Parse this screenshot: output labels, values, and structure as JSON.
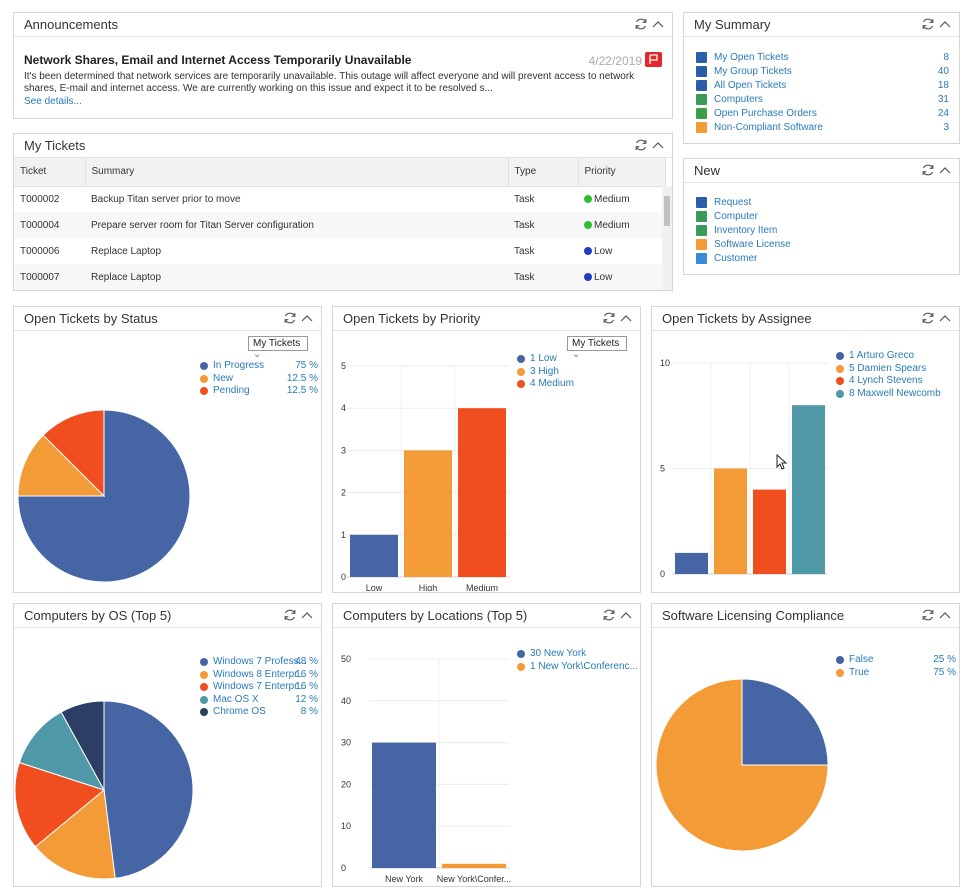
{
  "colors": {
    "blue": "#4565a4",
    "orange": "#f29b37",
    "red": "#f04e1e",
    "teal": "#4e98a8",
    "navy": "#2c3e63",
    "link": "#2a7ab8"
  },
  "announcements": {
    "title": "Announcements",
    "headline": "Network Shares, Email and Internet Access Temporarily Unavailable",
    "date": "4/22/2019",
    "body": "It's been determined that network services are temporarily unavailable. This outage will affect everyone and will prevent access to network shares, E-mail and internet access. We are currently working on this issue and expect it to be resolved s...",
    "see_details": "See details..."
  },
  "my_tickets": {
    "title": "My Tickets",
    "columns": [
      "Ticket",
      "Summary",
      "Type",
      "Priority"
    ],
    "rows": [
      {
        "ticket": "T000002",
        "summary": "Backup Titan server prior to move",
        "type": "Task",
        "priority": "Medium",
        "color": "#2fbf2f"
      },
      {
        "ticket": "T000004",
        "summary": "Prepare server room for Titan Server configuration",
        "type": "Task",
        "priority": "Medium",
        "color": "#2fbf2f"
      },
      {
        "ticket": "T000006",
        "summary": "Replace Laptop",
        "type": "Task",
        "priority": "Low",
        "color": "#1f3fbf"
      },
      {
        "ticket": "T000007",
        "summary": "Replace Laptop",
        "type": "Task",
        "priority": "Low",
        "color": "#1f3fbf"
      }
    ]
  },
  "my_summary": {
    "title": "My Summary",
    "items": [
      {
        "label": "My Open Tickets",
        "count": "8",
        "icon": "ticket-icon",
        "color": "#2a5fa8"
      },
      {
        "label": "My Group Tickets",
        "count": "40",
        "icon": "ticket-icon",
        "color": "#2a5fa8"
      },
      {
        "label": "All Open Tickets",
        "count": "18",
        "icon": "ticket-icon",
        "color": "#2a5fa8"
      },
      {
        "label": "Computers",
        "count": "31",
        "icon": "computer-icon",
        "color": "#3a9a5a"
      },
      {
        "label": "Open Purchase Orders",
        "count": "24",
        "icon": "purchase-order-icon",
        "color": "#3aa04a"
      },
      {
        "label": "Non-Compliant Software",
        "count": "3",
        "icon": "software-icon",
        "color": "#f29b37"
      }
    ]
  },
  "new_panel": {
    "title": "New",
    "items": [
      {
        "label": "Request",
        "icon": "request-icon",
        "color": "#2a5fa8"
      },
      {
        "label": "Computer",
        "icon": "computer-icon",
        "color": "#3a9a5a"
      },
      {
        "label": "Inventory Item",
        "icon": "inventory-icon",
        "color": "#3a9a5a"
      },
      {
        "label": "Software License",
        "icon": "license-icon",
        "color": "#f29b37"
      },
      {
        "label": "Customer",
        "icon": "customer-icon",
        "color": "#3a8ad8"
      }
    ]
  },
  "panels": {
    "status_title": "Open Tickets by Status",
    "priority_title": "Open Tickets by Priority",
    "assignee_title": "Open Tickets by Assignee",
    "os_title": "Computers by OS (Top 5)",
    "locations_title": "Computers by Locations (Top 5)",
    "compliance_title": "Software Licensing Compliance",
    "dropdown_value": "My Tickets"
  },
  "chart_data": [
    {
      "id": "status",
      "type": "pie",
      "labels": [
        "In Progress",
        "New",
        "Pending"
      ],
      "percents": [
        "75 %",
        "12.5 %",
        "12.5 %"
      ],
      "values": [
        75,
        12.5,
        12.5
      ],
      "colors": [
        "#4565a4",
        "#f29b37",
        "#f04e1e"
      ]
    },
    {
      "id": "priority",
      "type": "bar",
      "categories": [
        "Low",
        "High",
        "Medium"
      ],
      "values": [
        1,
        3,
        4
      ],
      "legend": [
        "1  Low",
        "3  High",
        "4  Medium"
      ],
      "colors": [
        "#4565a4",
        "#f29b37",
        "#f04e1e"
      ],
      "yticks": [
        0,
        1,
        2,
        3,
        4,
        5
      ],
      "ylim": [
        0,
        5
      ]
    },
    {
      "id": "assignee",
      "type": "bar",
      "categories": [
        "Arturo Greco",
        "Damien Spears",
        "Lynch Stevens",
        "Maxwell Newcomb"
      ],
      "values": [
        1,
        5,
        4,
        8
      ],
      "legend": [
        "1  Arturo Greco",
        "5  Damien Spears",
        "4  Lynch Stevens",
        "8  Maxwell Newcomb"
      ],
      "colors": [
        "#4565a4",
        "#f29b37",
        "#f04e1e",
        "#4e98a8"
      ],
      "yticks": [
        0,
        5,
        10
      ],
      "ylim": [
        0,
        10
      ]
    },
    {
      "id": "os",
      "type": "pie",
      "labels": [
        "Windows 7 Profess...",
        "Windows 8 Enterpr...",
        "Windows 7 Enterpr...",
        "Mac OS X",
        "Chrome OS"
      ],
      "percents": [
        "48 %",
        "16 %",
        "16 %",
        "12 %",
        "8 %"
      ],
      "values": [
        48,
        16,
        16,
        12,
        8
      ],
      "colors": [
        "#4565a4",
        "#f29b37",
        "#f04e1e",
        "#4e98a8",
        "#2c3e63"
      ]
    },
    {
      "id": "locations",
      "type": "bar",
      "categories": [
        "New York",
        "New York\\Confer..."
      ],
      "values": [
        30,
        1
      ],
      "legend": [
        "30  New York",
        "1  New York\\Conferenc..."
      ],
      "colors": [
        "#4565a4",
        "#f29b37"
      ],
      "yticks": [
        0,
        10,
        20,
        30,
        40,
        50
      ],
      "ylim": [
        0,
        50
      ]
    },
    {
      "id": "compliance",
      "type": "pie",
      "labels": [
        "False",
        "True"
      ],
      "percents": [
        "25 %",
        "75 %"
      ],
      "values": [
        25,
        75
      ],
      "colors": [
        "#4565a4",
        "#f29b37"
      ]
    }
  ]
}
